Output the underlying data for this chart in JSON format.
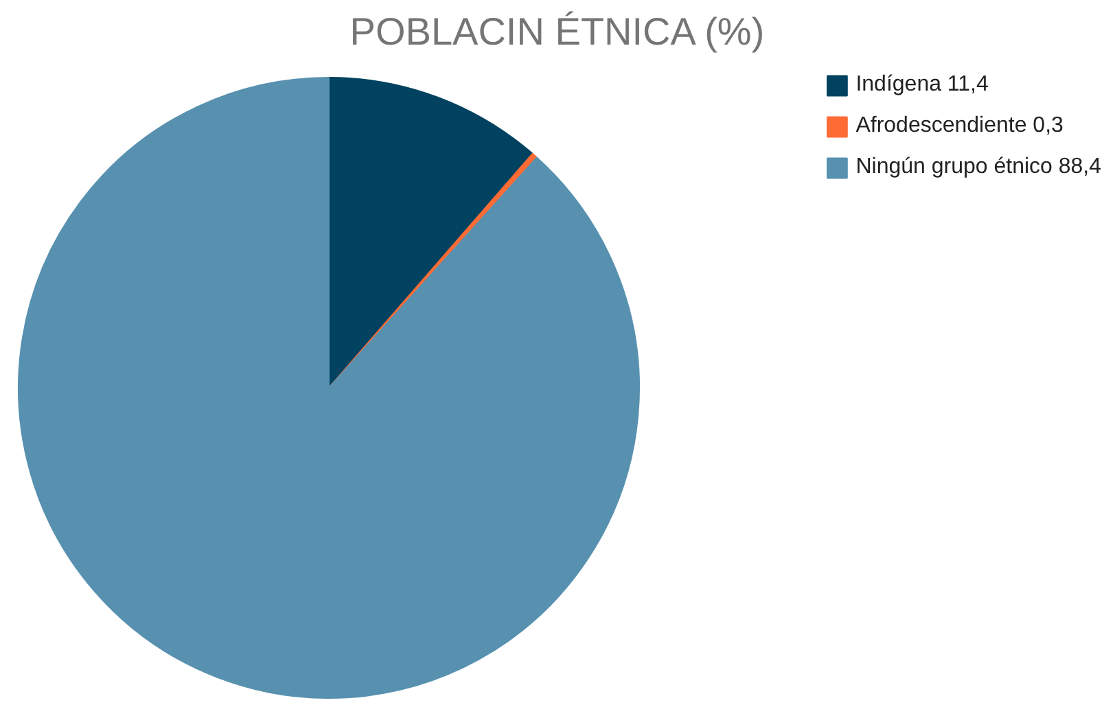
{
  "chart_data": {
    "type": "pie",
    "title": "POBLACIN ÉTNICA (%)",
    "categories": [
      "Indígena 11,4",
      "Afrodescendiente 0,3",
      "Ningún grupo étnico 88,4"
    ],
    "values": [
      11.4,
      0.3,
      88.4
    ],
    "colors": [
      "#00425f",
      "#ff6b35",
      "#5891b0"
    ],
    "legend": "top right"
  }
}
